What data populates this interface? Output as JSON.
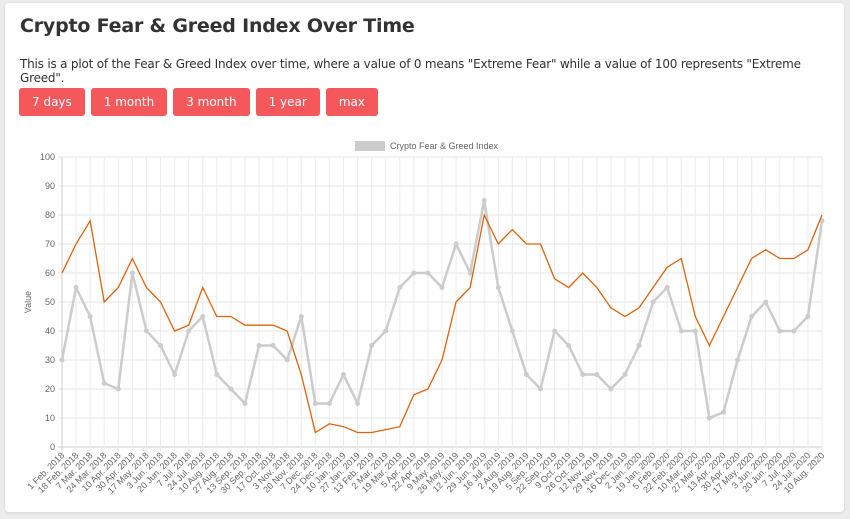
{
  "header": {
    "title": "Crypto Fear & Greed Index Over Time",
    "description": "This is a plot of the Fear & Greed Index over time, where a value of 0 means \"Extreme Fear\" while a value of 100 represents \"Extreme Greed\"."
  },
  "range_buttons": [
    {
      "label": "7 days"
    },
    {
      "label": "1 month"
    },
    {
      "label": "3 month"
    },
    {
      "label": "1 year"
    },
    {
      "label": "max"
    }
  ],
  "colors": {
    "button": "#f4585a",
    "index_series": "#cccccc",
    "second_series": "#e0620c"
  },
  "chart_data": {
    "type": "line",
    "title": "",
    "ylabel": "Value",
    "ylim": [
      0,
      100
    ],
    "yticks": [
      0,
      10,
      20,
      30,
      40,
      50,
      60,
      70,
      80,
      90,
      100
    ],
    "grid": true,
    "legend": "top",
    "x": [
      "1 Feb. 2018",
      "18 Feb. 2018",
      "7 Mar. 2018",
      "24 Mar. 2018",
      "10 Apr. 2018",
      "30 Apr. 2018",
      "17 May. 2018",
      "3 Jun. 2018",
      "20 Jun. 2018",
      "7 Jul. 2018",
      "24 Jul. 2018",
      "10 Aug. 2018",
      "27 Aug. 2018",
      "13 Sep. 2018",
      "30 Sep. 2018",
      "17 Oct. 2018",
      "3 Nov. 2018",
      "20 Nov. 2018",
      "7 Dec. 2018",
      "24 Dec. 2018",
      "10 Jan. 2019",
      "27 Jan. 2019",
      "13 Feb. 2019",
      "2 Mar. 2019",
      "19 Mar. 2019",
      "5 Apr. 2019",
      "22 Apr. 2019",
      "9 May. 2019",
      "26 May. 2019",
      "12 Jun. 2019",
      "29 Jun. 2019",
      "16 Jul. 2019",
      "2 Aug. 2019",
      "19 Aug. 2019",
      "5 Sep. 2019",
      "22 Sep. 2019",
      "9 Oct. 2019",
      "26 Oct. 2019",
      "12 Nov. 2019",
      "29 Nov. 2019",
      "16 Dec. 2019",
      "2 Jan. 2020",
      "19 Jan. 2020",
      "5 Feb. 2020",
      "22 Feb. 2020",
      "10 Mar. 2020",
      "27 Mar. 2020",
      "13 Apr. 2020",
      "30 Apr. 2020",
      "17 May. 2020",
      "3 Jun. 2020",
      "20 Jun. 2020",
      "7 Jul. 2020",
      "24 Jul. 2020",
      "10 Aug. 2020"
    ],
    "series": [
      {
        "name": "Crypto Fear & Greed Index",
        "color": "#cccccc",
        "values": [
          30,
          55,
          45,
          22,
          20,
          60,
          40,
          35,
          25,
          40,
          45,
          25,
          20,
          15,
          35,
          35,
          30,
          45,
          15,
          15,
          25,
          15,
          35,
          40,
          55,
          60,
          60,
          55,
          70,
          60,
          85,
          55,
          40,
          25,
          20,
          40,
          35,
          25,
          25,
          20,
          25,
          35,
          50,
          55,
          40,
          40,
          10,
          12,
          30,
          45,
          50,
          40,
          40,
          45,
          78
        ]
      },
      {
        "color": "#e0620c",
        "values": [
          60,
          70,
          78,
          50,
          55,
          65,
          55,
          50,
          40,
          42,
          55,
          45,
          45,
          42,
          42,
          42,
          40,
          25,
          5,
          8,
          7,
          5,
          5,
          6,
          7,
          18,
          20,
          30,
          50,
          55,
          80,
          70,
          75,
          70,
          70,
          58,
          55,
          60,
          55,
          48,
          45,
          48,
          55,
          62,
          65,
          45,
          35,
          45,
          55,
          65,
          68,
          65,
          65,
          68,
          80
        ]
      }
    ]
  }
}
